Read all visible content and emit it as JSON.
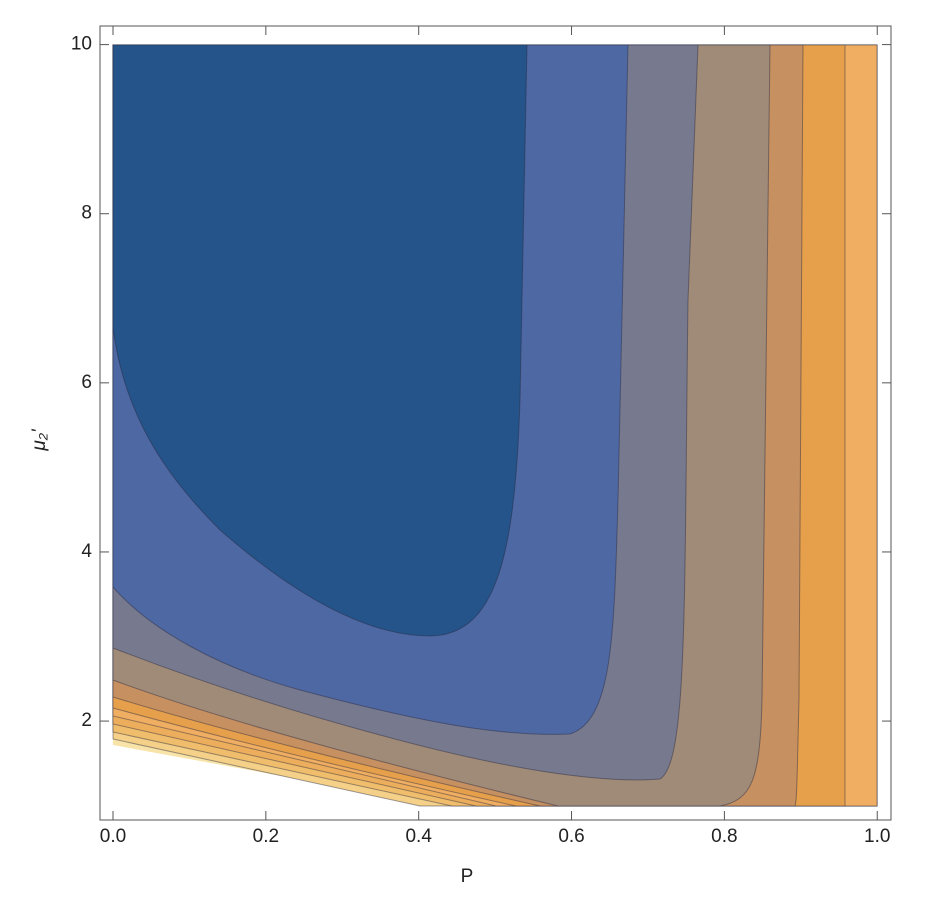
{
  "chart_data": {
    "type": "contour",
    "x_label": "P",
    "y_label": "μ₂'",
    "xlim": [
      -0.017,
      1.018
    ],
    "ylim": [
      0.83,
      10.22
    ],
    "xticks": [
      {
        "value": 0,
        "label": "0.0"
      },
      0.2,
      0.4,
      0.6,
      0.8,
      {
        "value": 1,
        "label": "1.0"
      }
    ],
    "yticks": [
      2,
      4,
      6,
      8,
      10
    ]
  }
}
